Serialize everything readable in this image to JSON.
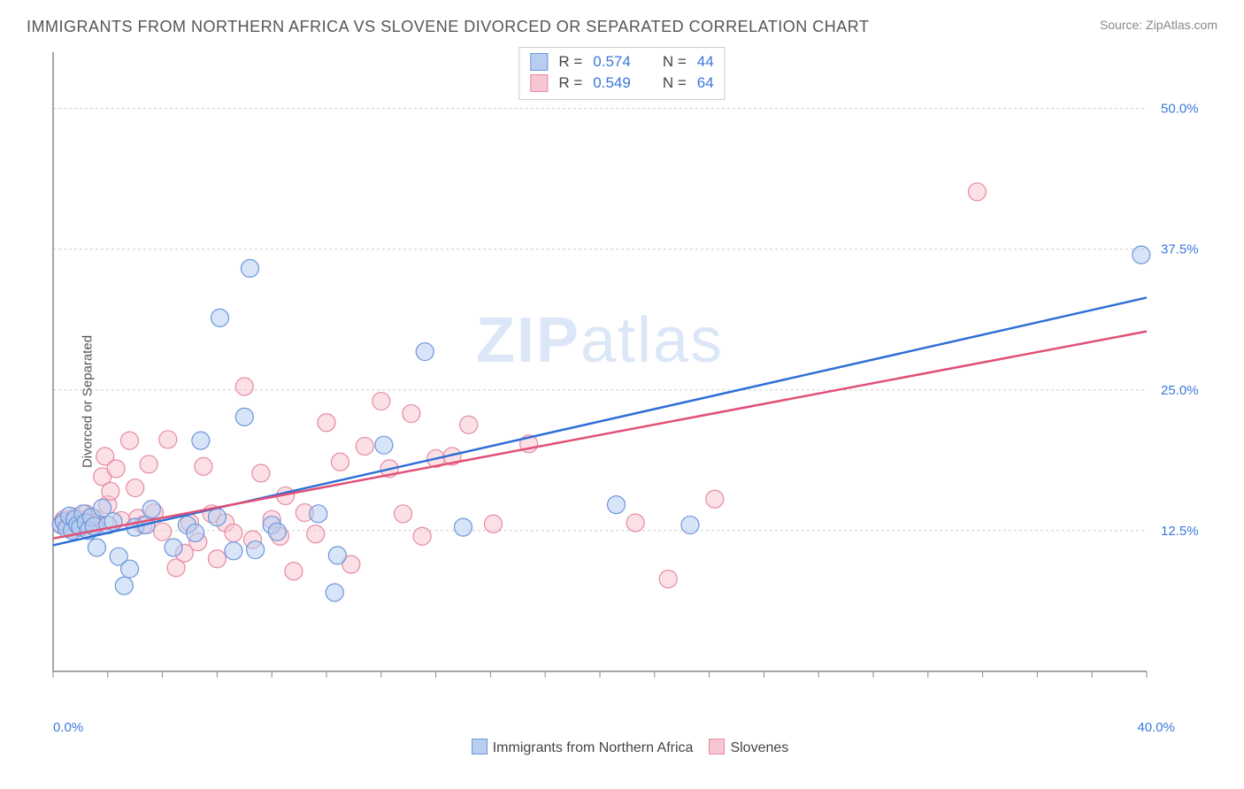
{
  "title": "IMMIGRANTS FROM NORTHERN AFRICA VS SLOVENE DIVORCED OR SEPARATED CORRELATION CHART",
  "source": "Source: ZipAtlas.com",
  "watermark": {
    "zip": "ZIP",
    "atlas": "atlas"
  },
  "y_axis_label": "Divorced or Separated",
  "chart": {
    "type": "scatter",
    "background_color": "#ffffff",
    "grid_color": "#cccccc",
    "axis_color": "#888888",
    "tick_label_color": "#3b78d8",
    "tick_label_fontsize": 15,
    "title_fontsize": 18,
    "title_color": "#555555",
    "marker_radius": 10,
    "marker_opacity": 0.55,
    "trendline_width": 2.5,
    "xlim": [
      0,
      40
    ],
    "ylim": [
      0,
      55
    ],
    "x_ticks_minor_step": 2,
    "y_grid": [
      12.5,
      25.0,
      37.5,
      50.0
    ],
    "x_axis_min_label": "0.0%",
    "x_axis_max_label": "40.0%",
    "y_tick_labels": [
      "12.5%",
      "25.0%",
      "37.5%",
      "50.0%"
    ]
  },
  "legend_top": {
    "rows": [
      {
        "swatch_fill": "#b8cdf0",
        "swatch_border": "#6a96dc",
        "r_label": "R =",
        "r_value": "0.574",
        "n_label": "N =",
        "n_value": "44"
      },
      {
        "swatch_fill": "#f7c6d2",
        "swatch_border": "#e68aa2",
        "r_label": "R =",
        "r_value": "0.549",
        "n_label": "N =",
        "n_value": "64"
      }
    ]
  },
  "legend_bottom": {
    "items": [
      {
        "swatch_fill": "#b8cdf0",
        "swatch_border": "#6a96dc",
        "label": "Immigrants from Northern Africa"
      },
      {
        "swatch_fill": "#f7c6d2",
        "swatch_border": "#e68aa2",
        "label": "Slovenes"
      }
    ]
  },
  "series": [
    {
      "name": "Immigrants from Northern Africa",
      "color_fill": "#b8cdf0",
      "color_stroke": "#6a96dc",
      "trend_color": "#2e6fd6",
      "trend": {
        "x1": 0,
        "y1": 11.2,
        "x2": 40,
        "y2": 33.2
      },
      "points": [
        [
          0.3,
          13.0
        ],
        [
          0.4,
          13.3
        ],
        [
          0.5,
          12.7
        ],
        [
          0.6,
          13.8
        ],
        [
          0.7,
          12.5
        ],
        [
          0.8,
          13.5
        ],
        [
          0.9,
          13.0
        ],
        [
          1.0,
          12.8
        ],
        [
          1.1,
          14.0
        ],
        [
          1.2,
          13.2
        ],
        [
          1.3,
          12.5
        ],
        [
          1.4,
          13.7
        ],
        [
          1.5,
          12.9
        ],
        [
          1.6,
          11.0
        ],
        [
          1.8,
          14.5
        ],
        [
          2.0,
          13.0
        ],
        [
          2.2,
          13.3
        ],
        [
          2.4,
          10.2
        ],
        [
          2.6,
          7.6
        ],
        [
          2.8,
          9.1
        ],
        [
          3.0,
          12.8
        ],
        [
          3.4,
          13.0
        ],
        [
          3.6,
          14.4
        ],
        [
          4.4,
          11.0
        ],
        [
          4.9,
          13.0
        ],
        [
          5.2,
          12.3
        ],
        [
          5.4,
          20.5
        ],
        [
          6.0,
          13.7
        ],
        [
          6.1,
          31.4
        ],
        [
          6.6,
          10.7
        ],
        [
          7.0,
          22.6
        ],
        [
          7.2,
          35.8
        ],
        [
          7.4,
          10.8
        ],
        [
          8.0,
          13.0
        ],
        [
          8.2,
          12.4
        ],
        [
          9.7,
          14.0
        ],
        [
          10.3,
          7.0
        ],
        [
          10.4,
          10.3
        ],
        [
          12.1,
          20.1
        ],
        [
          13.6,
          28.4
        ],
        [
          15.0,
          12.8
        ],
        [
          20.6,
          14.8
        ],
        [
          23.3,
          13.0
        ],
        [
          39.8,
          37.0
        ]
      ]
    },
    {
      "name": "Slovenes",
      "color_fill": "#f7c6d2",
      "color_stroke": "#e68aa2",
      "trend_color": "#e15077",
      "trend": {
        "x1": 0,
        "y1": 11.8,
        "x2": 40,
        "y2": 30.2
      },
      "points": [
        [
          0.3,
          13.1
        ],
        [
          0.4,
          13.5
        ],
        [
          0.5,
          13.0
        ],
        [
          0.6,
          13.3
        ],
        [
          0.7,
          12.7
        ],
        [
          0.8,
          13.7
        ],
        [
          0.9,
          13.2
        ],
        [
          1.0,
          13.5
        ],
        [
          1.1,
          13.0
        ],
        [
          1.2,
          14.0
        ],
        [
          1.3,
          13.3
        ],
        [
          1.4,
          12.9
        ],
        [
          1.5,
          13.6
        ],
        [
          1.6,
          13.1
        ],
        [
          1.8,
          17.3
        ],
        [
          1.9,
          19.1
        ],
        [
          2.0,
          14.8
        ],
        [
          2.1,
          16.0
        ],
        [
          2.3,
          18.0
        ],
        [
          2.5,
          13.4
        ],
        [
          2.8,
          20.5
        ],
        [
          3.0,
          16.3
        ],
        [
          3.1,
          13.6
        ],
        [
          3.3,
          13.0
        ],
        [
          3.5,
          18.4
        ],
        [
          3.7,
          14.1
        ],
        [
          4.0,
          12.4
        ],
        [
          4.2,
          20.6
        ],
        [
          4.5,
          9.2
        ],
        [
          4.8,
          10.5
        ],
        [
          5.0,
          13.2
        ],
        [
          5.3,
          11.5
        ],
        [
          5.5,
          18.2
        ],
        [
          5.8,
          14.0
        ],
        [
          6.0,
          10.0
        ],
        [
          6.3,
          13.2
        ],
        [
          6.6,
          12.3
        ],
        [
          7.0,
          25.3
        ],
        [
          7.3,
          11.7
        ],
        [
          7.6,
          17.6
        ],
        [
          8.0,
          13.5
        ],
        [
          8.3,
          12.0
        ],
        [
          8.5,
          15.6
        ],
        [
          8.8,
          8.9
        ],
        [
          9.2,
          14.1
        ],
        [
          9.6,
          12.2
        ],
        [
          10.0,
          22.1
        ],
        [
          10.5,
          18.6
        ],
        [
          10.9,
          9.5
        ],
        [
          11.4,
          20.0
        ],
        [
          12.0,
          24.0
        ],
        [
          12.3,
          18.0
        ],
        [
          12.8,
          14.0
        ],
        [
          13.1,
          22.9
        ],
        [
          13.5,
          12.0
        ],
        [
          14.0,
          18.9
        ],
        [
          14.6,
          19.1
        ],
        [
          15.2,
          21.9
        ],
        [
          16.1,
          13.1
        ],
        [
          17.4,
          20.2
        ],
        [
          21.3,
          13.2
        ],
        [
          22.5,
          8.2
        ],
        [
          24.2,
          15.3
        ],
        [
          33.8,
          42.6
        ]
      ]
    }
  ]
}
